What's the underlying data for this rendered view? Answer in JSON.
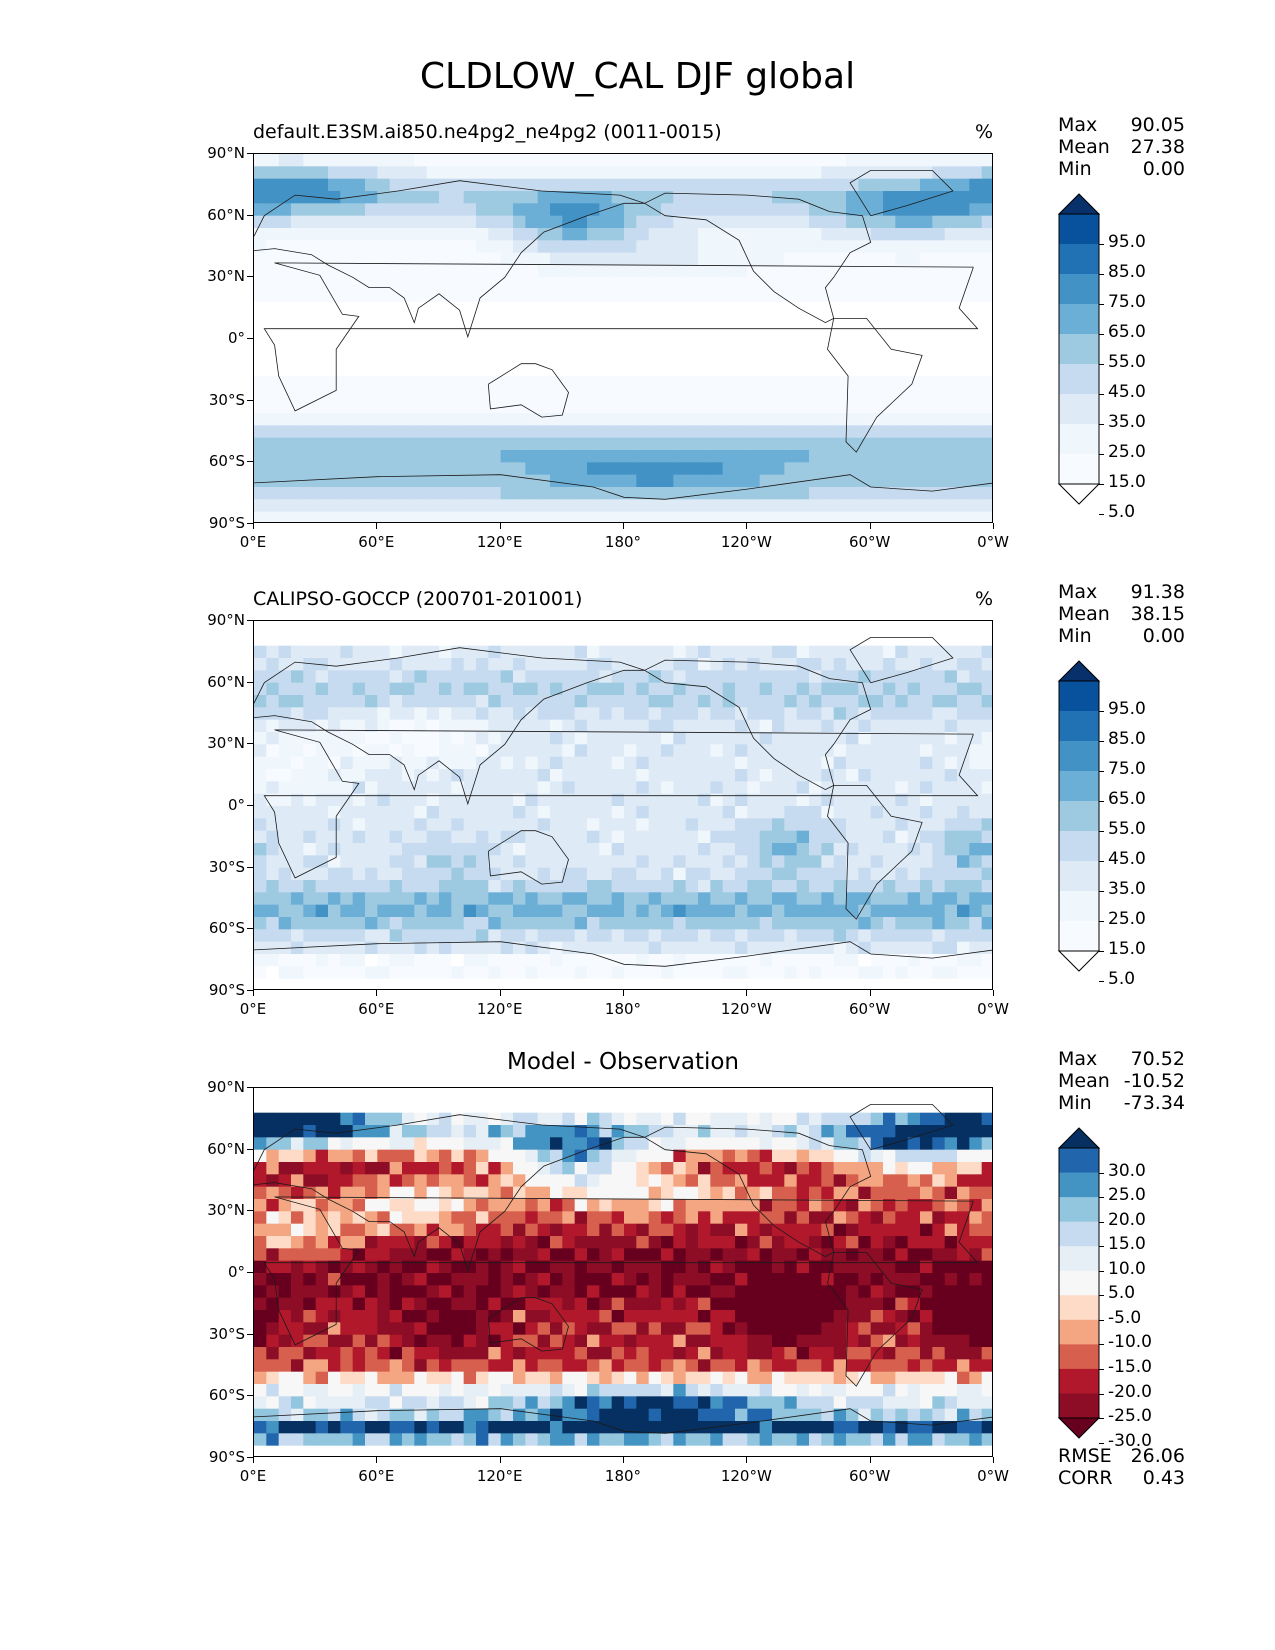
{
  "figure": {
    "title": "CLDLOW_CAL DJF global"
  },
  "panels": [
    {
      "id": "model",
      "title_left": "default.E3SM.ai850.ne4pg2_ne4pg2 (0011-0015)",
      "title_center": "",
      "units": "%",
      "stats": [
        {
          "label": "Max",
          "value": "90.05"
        },
        {
          "label": "Mean",
          "value": "27.38"
        },
        {
          "label": "Min",
          "value": "0.00"
        }
      ],
      "colorbar": {
        "colormap": "Blues",
        "levels": [
          "95.0",
          "85.0",
          "75.0",
          "65.0",
          "55.0",
          "45.0",
          "35.0",
          "25.0",
          "15.0",
          "5.0"
        ],
        "colors": [
          "#08306b",
          "#08519c",
          "#2171b5",
          "#4292c6",
          "#6baed6",
          "#9ecae1",
          "#c6dbef",
          "#deebf7",
          "#eff6fc",
          "#f7fbff",
          "#ffffff"
        ]
      },
      "footer": []
    },
    {
      "id": "obs",
      "title_left": "CALIPSO-GOCCP (200701-201001)",
      "title_center": "",
      "units": "%",
      "stats": [
        {
          "label": "Max",
          "value": "91.38"
        },
        {
          "label": "Mean",
          "value": "38.15"
        },
        {
          "label": "Min",
          "value": "0.00"
        }
      ],
      "colorbar": {
        "colormap": "Blues",
        "levels": [
          "95.0",
          "85.0",
          "75.0",
          "65.0",
          "55.0",
          "45.0",
          "35.0",
          "25.0",
          "15.0",
          "5.0"
        ],
        "colors": [
          "#08306b",
          "#08519c",
          "#2171b5",
          "#4292c6",
          "#6baed6",
          "#9ecae1",
          "#c6dbef",
          "#deebf7",
          "#eff6fc",
          "#f7fbff",
          "#ffffff"
        ]
      },
      "footer": []
    },
    {
      "id": "diff",
      "title_left": "",
      "title_center": "Model - Observation",
      "units": "",
      "stats": [
        {
          "label": "Max",
          "value": "70.52"
        },
        {
          "label": "Mean",
          "value": "-10.52"
        },
        {
          "label": "Min",
          "value": "-73.34"
        }
      ],
      "colorbar": {
        "colormap": "RdBu",
        "levels": [
          "30.0",
          "25.0",
          "20.0",
          "15.0",
          "10.0",
          "5.0",
          "-5.0",
          "-10.0",
          "-15.0",
          "-20.0",
          "-25.0",
          "-30.0"
        ],
        "colors": [
          "#053061",
          "#2166ac",
          "#4393c3",
          "#92c5de",
          "#c6dbef",
          "#e6eff5",
          "#f7f7f7",
          "#fddbc7",
          "#f4a582",
          "#d6604d",
          "#b2182b",
          "#8c0d25",
          "#67001f"
        ]
      },
      "footer": [
        {
          "label": "RMSE",
          "value": "26.06"
        },
        {
          "label": "CORR",
          "value": "0.43"
        }
      ]
    }
  ],
  "axes": {
    "lat_ticks": [
      "90°N",
      "60°N",
      "30°N",
      "0°",
      "30°S",
      "60°S",
      "90°S"
    ],
    "lon_ticks": [
      "0°E",
      "60°E",
      "120°E",
      "180°",
      "120°W",
      "60°W",
      "0°W"
    ]
  },
  "chart_data": [
    {
      "type": "heatmap",
      "panel": "model",
      "title": "default.E3SM.ai850.ne4pg2_ne4pg2 (0011-0015)",
      "units": "%",
      "projection": "PlateCarree",
      "xlim": [
        0,
        360
      ],
      "ylim": [
        -90,
        90
      ],
      "levels": [
        5,
        15,
        25,
        35,
        45,
        55,
        65,
        75,
        85,
        95
      ],
      "colormap": "Blues",
      "stats": {
        "max": 90.05,
        "mean": 27.38,
        "min": 0.0
      }
    },
    {
      "type": "heatmap",
      "panel": "obs",
      "title": "CALIPSO-GOCCP (200701-201001)",
      "units": "%",
      "projection": "PlateCarree",
      "xlim": [
        0,
        360
      ],
      "ylim": [
        -90,
        90
      ],
      "levels": [
        5,
        15,
        25,
        35,
        45,
        55,
        65,
        75,
        85,
        95
      ],
      "colormap": "Blues",
      "stats": {
        "max": 91.38,
        "mean": 38.15,
        "min": 0.0
      }
    },
    {
      "type": "heatmap",
      "panel": "diff",
      "title": "Model - Observation",
      "projection": "PlateCarree",
      "xlim": [
        0,
        360
      ],
      "ylim": [
        -90,
        90
      ],
      "levels": [
        -30,
        -25,
        -20,
        -15,
        -10,
        -5,
        5,
        10,
        15,
        20,
        25,
        30
      ],
      "colormap": "RdBu",
      "stats": {
        "max": 70.52,
        "mean": -10.52,
        "min": -73.34,
        "rmse": 26.06,
        "corr": 0.43
      }
    }
  ]
}
